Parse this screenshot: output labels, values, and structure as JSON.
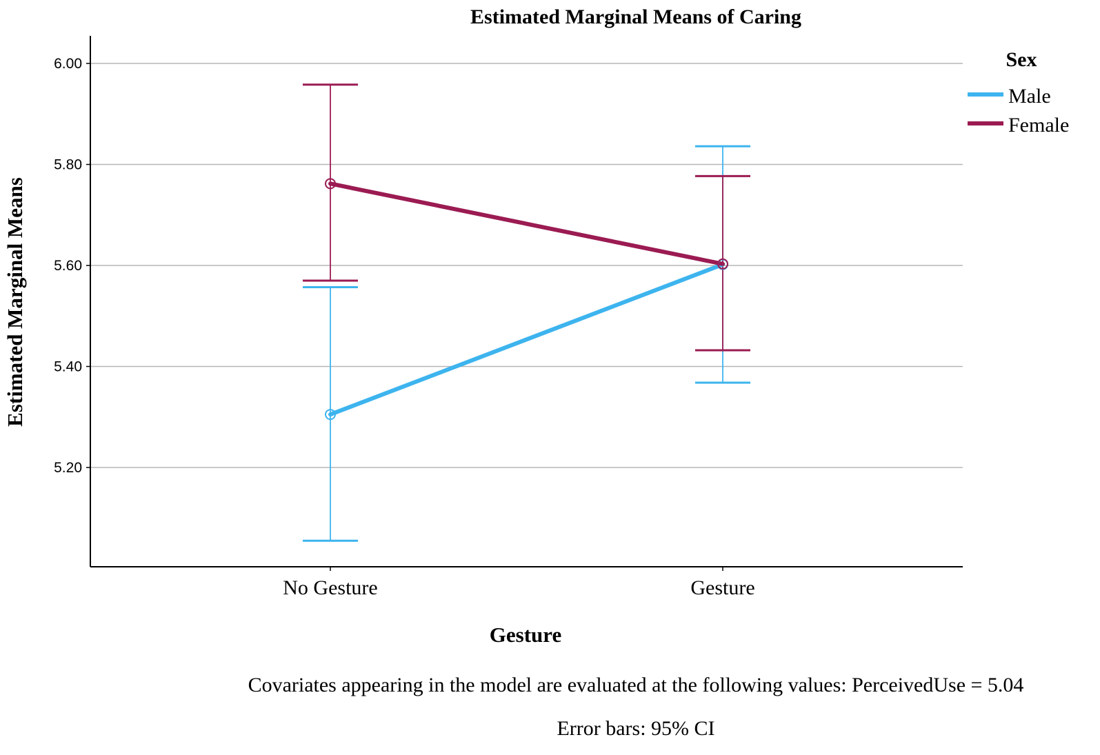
{
  "chart_data": {
    "type": "line",
    "title": "Estimated Marginal Means of Caring",
    "xlabel": "Gesture",
    "ylabel": "Estimated Marginal Means",
    "categories": [
      "No Gesture",
      "Gesture"
    ],
    "ylim": [
      5.0,
      6.05
    ],
    "yticks": [
      "5.20",
      "5.40",
      "5.60",
      "5.80",
      "6.00"
    ],
    "ytick_values": [
      5.2,
      5.4,
      5.6,
      5.8,
      6.0
    ],
    "grid": "horizontal",
    "legend": {
      "title": "Sex",
      "placement": "right"
    },
    "series": [
      {
        "name": "Male",
        "color": "#3db4ee",
        "values": [
          5.305,
          5.602
        ],
        "ci_lower": [
          5.055,
          5.368
        ],
        "ci_upper": [
          5.557,
          5.836
        ]
      },
      {
        "name": "Female",
        "color": "#9b1b52",
        "values": [
          5.762,
          5.603
        ],
        "ci_lower": [
          5.57,
          5.432
        ],
        "ci_upper": [
          5.958,
          5.777
        ]
      }
    ],
    "footnotes": [
      "Covariates appearing in the model are evaluated at the following values: PerceivedUse = 5.04",
      "Error bars: 95% CI"
    ]
  }
}
